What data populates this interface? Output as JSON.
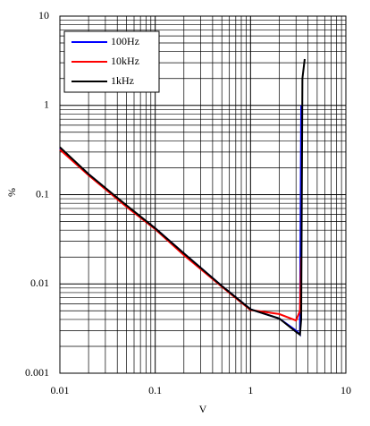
{
  "chart_data": {
    "type": "line",
    "x_label": "V",
    "y_label": "%",
    "x": [
      0.01,
      0.02,
      0.05,
      0.1,
      0.2,
      0.5,
      1,
      2,
      3,
      3.3,
      3.4,
      3.5,
      3.7
    ],
    "series": [
      {
        "name": "100Hz",
        "color": "#0000ff",
        "values": [
          0.33,
          0.17,
          0.075,
          0.042,
          0.022,
          0.0095,
          0.0052,
          0.0041,
          0.003,
          0.0027,
          1.0,
          null,
          null
        ]
      },
      {
        "name": "10kHz",
        "color": "#ff0000",
        "values": [
          0.32,
          0.165,
          0.073,
          0.041,
          0.021,
          0.0093,
          0.0051,
          0.0046,
          0.0039,
          0.005,
          0.02,
          null,
          null
        ]
      },
      {
        "name": "1kHz",
        "color": "#000000",
        "values": [
          0.34,
          0.17,
          0.076,
          0.042,
          0.022,
          0.0095,
          0.0052,
          0.0041,
          0.0029,
          0.0027,
          0.004,
          2.0,
          3.3
        ]
      }
    ],
    "xlim": [
      0.01,
      10
    ],
    "ylim": [
      0.001,
      10
    ],
    "xticks": [
      0.01,
      0.1,
      1,
      10
    ],
    "yticks": [
      0.001,
      0.01,
      0.1,
      1,
      10
    ],
    "x_log": true,
    "y_log": true,
    "grid": true,
    "legend": "upper left"
  }
}
